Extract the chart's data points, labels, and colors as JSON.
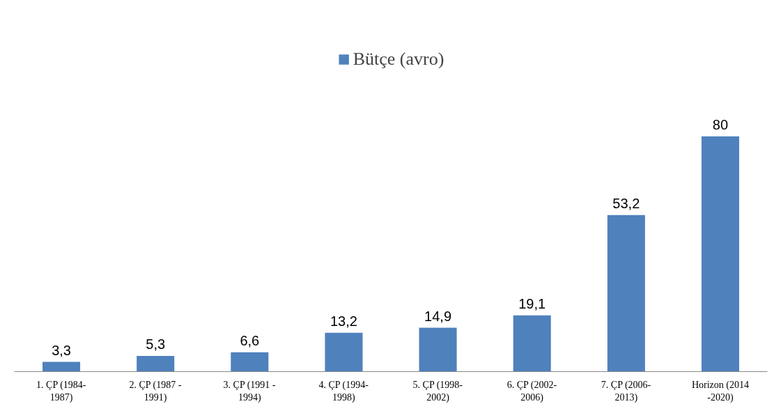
{
  "chart_data": {
    "type": "bar",
    "categories": [
      "1. ÇP (1984-\n1987)",
      "2. ÇP (1987 -\n1991)",
      "3. ÇP (1991 -\n1994)",
      "4. ÇP (1994-\n1998)",
      "5. ÇP (1998-\n2002)",
      "6. ÇP (2002-\n2006)",
      "7. ÇP (2006-\n2013)",
      "Horizon (2014\n-2020)"
    ],
    "series": [
      {
        "name": "Bütçe (avro)",
        "color": "#4f81bd",
        "values": [
          3.3,
          5.3,
          6.6,
          13.2,
          14.9,
          19.1,
          53.2,
          80
        ],
        "value_labels": [
          "3,3",
          "5,3",
          "6,6",
          "13,2",
          "14,9",
          "19,1",
          "53,2",
          "80"
        ]
      }
    ],
    "legend": "top",
    "grid": false
  }
}
